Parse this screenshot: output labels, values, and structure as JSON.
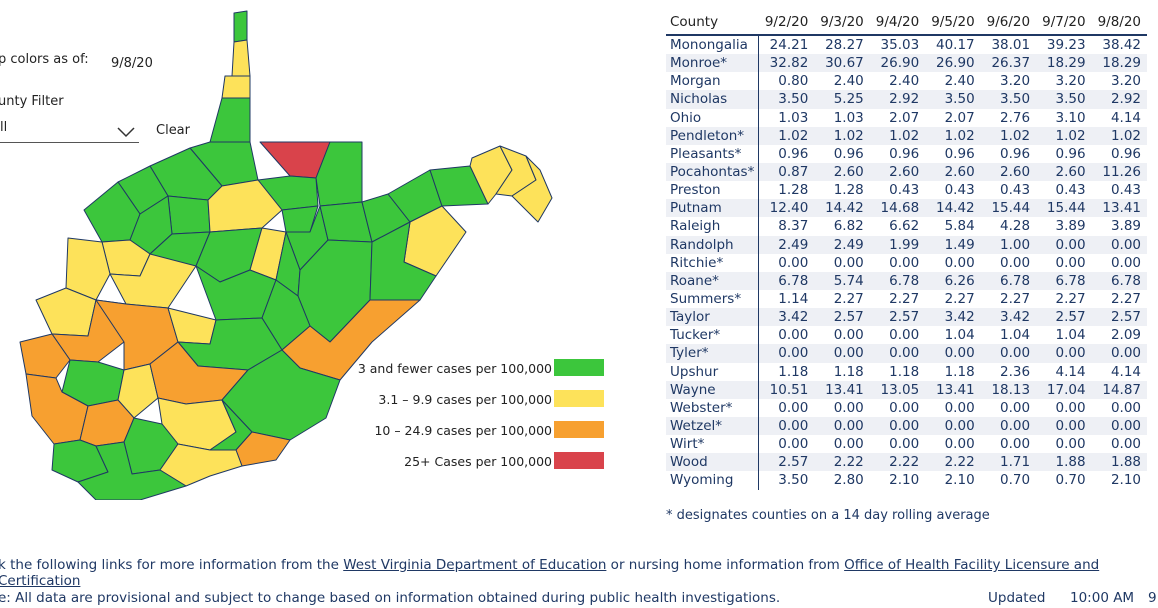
{
  "map_panel": {
    "colors_as_of_label": "p colors as of:",
    "colors_as_of_value": "9/8/20",
    "county_filter_label": "unty Filter",
    "county_filter_value": "ll",
    "clear_label": "Clear"
  },
  "legend": [
    {
      "label": "3 and fewer cases per 100,000",
      "color": "#3cc63c"
    },
    {
      "label": "3.1 – 9.9 cases per 100,000",
      "color": "#fde25a"
    },
    {
      "label": "10 – 24.9 cases per 100,000",
      "color": "#f7a030"
    },
    {
      "label": "25+ Cases per 100,000",
      "color": "#d9434b"
    }
  ],
  "table": {
    "headers": [
      "County",
      "9/2/20",
      "9/3/20",
      "9/4/20",
      "9/5/20",
      "9/6/20",
      "9/7/20",
      "9/8/20"
    ],
    "rows": [
      {
        "county": "Monongalia",
        "values": [
          "24.21",
          "28.27",
          "35.03",
          "40.17",
          "38.01",
          "39.23",
          "38.42"
        ]
      },
      {
        "county": "Monroe*",
        "values": [
          "32.82",
          "30.67",
          "26.90",
          "26.90",
          "26.37",
          "18.29",
          "18.29"
        ]
      },
      {
        "county": "Morgan",
        "values": [
          "0.80",
          "2.40",
          "2.40",
          "2.40",
          "3.20",
          "3.20",
          "3.20"
        ]
      },
      {
        "county": "Nicholas",
        "values": [
          "3.50",
          "5.25",
          "2.92",
          "3.50",
          "3.50",
          "3.50",
          "2.92"
        ]
      },
      {
        "county": "Ohio",
        "values": [
          "1.03",
          "1.03",
          "2.07",
          "2.07",
          "2.76",
          "3.10",
          "4.14"
        ]
      },
      {
        "county": "Pendleton*",
        "values": [
          "1.02",
          "1.02",
          "1.02",
          "1.02",
          "1.02",
          "1.02",
          "1.02"
        ]
      },
      {
        "county": "Pleasants*",
        "values": [
          "0.96",
          "0.96",
          "0.96",
          "0.96",
          "0.96",
          "0.96",
          "0.96"
        ]
      },
      {
        "county": "Pocahontas*",
        "values": [
          "0.87",
          "2.60",
          "2.60",
          "2.60",
          "2.60",
          "2.60",
          "11.26"
        ]
      },
      {
        "county": "Preston",
        "values": [
          "1.28",
          "1.28",
          "0.43",
          "0.43",
          "0.43",
          "0.43",
          "0.43"
        ]
      },
      {
        "county": "Putnam",
        "values": [
          "12.40",
          "14.42",
          "14.68",
          "14.42",
          "15.44",
          "15.44",
          "13.41"
        ]
      },
      {
        "county": "Raleigh",
        "values": [
          "8.37",
          "6.82",
          "6.62",
          "5.84",
          "4.28",
          "3.89",
          "3.89"
        ]
      },
      {
        "county": "Randolph",
        "values": [
          "2.49",
          "2.49",
          "1.99",
          "1.49",
          "1.00",
          "0.00",
          "0.00"
        ]
      },
      {
        "county": "Ritchie*",
        "values": [
          "0.00",
          "0.00",
          "0.00",
          "0.00",
          "0.00",
          "0.00",
          "0.00"
        ]
      },
      {
        "county": "Roane*",
        "values": [
          "6.78",
          "5.74",
          "6.78",
          "6.26",
          "6.78",
          "6.78",
          "6.78"
        ]
      },
      {
        "county": "Summers*",
        "values": [
          "1.14",
          "2.27",
          "2.27",
          "2.27",
          "2.27",
          "2.27",
          "2.27"
        ]
      },
      {
        "county": "Taylor",
        "values": [
          "3.42",
          "2.57",
          "2.57",
          "3.42",
          "3.42",
          "2.57",
          "2.57"
        ]
      },
      {
        "county": "Tucker*",
        "values": [
          "0.00",
          "0.00",
          "0.00",
          "1.04",
          "1.04",
          "1.04",
          "2.09"
        ]
      },
      {
        "county": "Tyler*",
        "values": [
          "0.00",
          "0.00",
          "0.00",
          "0.00",
          "0.00",
          "0.00",
          "0.00"
        ]
      },
      {
        "county": "Upshur",
        "values": [
          "1.18",
          "1.18",
          "1.18",
          "1.18",
          "2.36",
          "4.14",
          "4.14"
        ]
      },
      {
        "county": "Wayne",
        "values": [
          "10.51",
          "13.41",
          "13.05",
          "13.41",
          "18.13",
          "17.04",
          "14.87"
        ]
      },
      {
        "county": "Webster*",
        "values": [
          "0.00",
          "0.00",
          "0.00",
          "0.00",
          "0.00",
          "0.00",
          "0.00"
        ]
      },
      {
        "county": "Wetzel*",
        "values": [
          "0.00",
          "0.00",
          "0.00",
          "0.00",
          "0.00",
          "0.00",
          "0.00"
        ]
      },
      {
        "county": "Wirt*",
        "values": [
          "0.00",
          "0.00",
          "0.00",
          "0.00",
          "0.00",
          "0.00",
          "0.00"
        ]
      },
      {
        "county": "Wood",
        "values": [
          "2.57",
          "2.22",
          "2.22",
          "2.22",
          "1.71",
          "1.88",
          "1.88"
        ]
      },
      {
        "county": "Wyoming",
        "values": [
          "3.50",
          "2.80",
          "2.10",
          "2.10",
          "0.70",
          "0.70",
          "2.10"
        ]
      }
    ],
    "footnote": "* designates counties on a 14 day rolling average"
  },
  "footer": {
    "links_prefix": "k the following links for more information from the ",
    "link_doe": "West Virginia Department of Education",
    "links_middle": " or nursing home information from ",
    "link_ohflac": "Office of Health Facility Licensure and Certification",
    "disclaimer": "e: All data are provisional and subject to change based on information obtained during public health investigations.",
    "updated_label": "Updated",
    "updated_time": "10:00 AM",
    "updated_date_partial": "9."
  }
}
